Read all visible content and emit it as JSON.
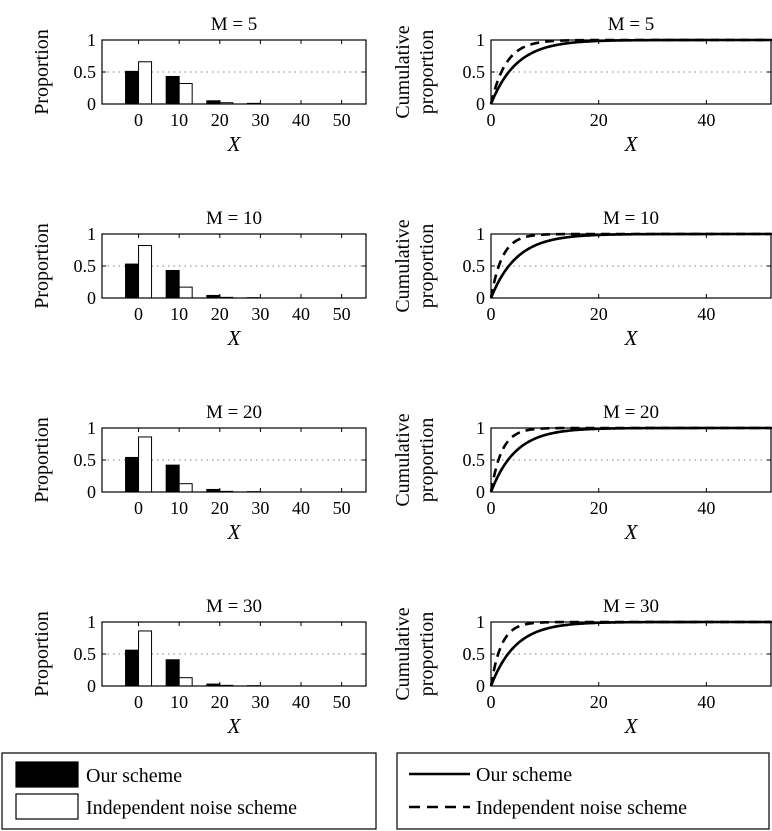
{
  "chart_data": [
    {
      "type": "bar",
      "title": "M = 5",
      "xlabel": "X",
      "ylabel": "Proportion",
      "xlim": [
        -9,
        56
      ],
      "ylim": [
        0,
        1
      ],
      "xticks": [
        0,
        10,
        20,
        30,
        40,
        50
      ],
      "yticks": [
        0,
        0.5,
        1
      ],
      "gridlines": [
        0.5
      ],
      "categories": [
        0,
        10,
        20,
        30,
        40,
        50
      ],
      "series": [
        {
          "name": "Our scheme",
          "values": [
            0.51,
            0.43,
            0.05,
            0.01,
            0.0,
            0.0
          ]
        },
        {
          "name": "Independent noise scheme",
          "values": [
            0.66,
            0.32,
            0.02,
            0.0,
            0.0,
            0.0
          ]
        }
      ]
    },
    {
      "type": "line",
      "title": "M = 5",
      "xlabel": "X",
      "ylabel": "Cumulative proportion",
      "xlim": [
        0,
        52
      ],
      "ylim": [
        0,
        1
      ],
      "xticks": [
        0,
        20,
        40
      ],
      "yticks": [
        0,
        0.5,
        1
      ],
      "gridlines": [
        0.5
      ],
      "series": [
        {
          "name": "Our scheme",
          "rate": 0.21
        },
        {
          "name": "Independent noise scheme",
          "rate": 0.36
        }
      ]
    },
    {
      "type": "bar",
      "title": "M = 10",
      "xlabel": "X",
      "ylabel": "Proportion",
      "xlim": [
        -9,
        56
      ],
      "ylim": [
        0,
        1
      ],
      "xticks": [
        0,
        10,
        20,
        30,
        40,
        50
      ],
      "yticks": [
        0,
        0.5,
        1
      ],
      "gridlines": [
        0.5
      ],
      "categories": [
        0,
        10,
        20,
        30,
        40,
        50
      ],
      "series": [
        {
          "name": "Our scheme",
          "values": [
            0.53,
            0.43,
            0.04,
            0.005,
            0.0,
            0.0
          ]
        },
        {
          "name": "Independent noise scheme",
          "values": [
            0.82,
            0.17,
            0.01,
            0.0,
            0.0,
            0.0
          ]
        }
      ]
    },
    {
      "type": "line",
      "title": "M = 10",
      "xlabel": "X",
      "ylabel": "Cumulative proportion",
      "xlim": [
        0,
        52
      ],
      "ylim": [
        0,
        1
      ],
      "xticks": [
        0,
        20,
        40
      ],
      "yticks": [
        0,
        0.5,
        1
      ],
      "gridlines": [
        0.5
      ],
      "series": [
        {
          "name": "Our scheme",
          "rate": 0.21
        },
        {
          "name": "Independent noise scheme",
          "rate": 0.48
        }
      ]
    },
    {
      "type": "bar",
      "title": "M = 20",
      "xlabel": "X",
      "ylabel": "Proportion",
      "xlim": [
        -9,
        56
      ],
      "ylim": [
        0,
        1
      ],
      "xticks": [
        0,
        10,
        20,
        30,
        40,
        50
      ],
      "yticks": [
        0,
        0.5,
        1
      ],
      "gridlines": [
        0.5
      ],
      "categories": [
        0,
        10,
        20,
        30,
        40,
        50
      ],
      "series": [
        {
          "name": "Our scheme",
          "values": [
            0.54,
            0.42,
            0.04,
            0.005,
            0.0,
            0.0
          ]
        },
        {
          "name": "Independent noise scheme",
          "values": [
            0.86,
            0.13,
            0.01,
            0.0,
            0.0,
            0.0
          ]
        }
      ]
    },
    {
      "type": "line",
      "title": "M = 20",
      "xlabel": "X",
      "ylabel": "Cumulative proportion",
      "xlim": [
        0,
        52
      ],
      "ylim": [
        0,
        1
      ],
      "xticks": [
        0,
        20,
        40
      ],
      "yticks": [
        0,
        0.5,
        1
      ],
      "gridlines": [
        0.5
      ],
      "series": [
        {
          "name": "Our scheme",
          "rate": 0.22
        },
        {
          "name": "Independent noise scheme",
          "rate": 0.5
        }
      ]
    },
    {
      "type": "bar",
      "title": "M = 30",
      "xlabel": "X",
      "ylabel": "Proportion",
      "xlim": [
        -9,
        56
      ],
      "ylim": [
        0,
        1
      ],
      "xticks": [
        0,
        10,
        20,
        30,
        40,
        50
      ],
      "yticks": [
        0,
        0.5,
        1
      ],
      "gridlines": [
        0.5
      ],
      "categories": [
        0,
        10,
        20,
        30,
        40,
        50
      ],
      "series": [
        {
          "name": "Our scheme",
          "values": [
            0.56,
            0.41,
            0.03,
            0.005,
            0.0,
            0.0
          ]
        },
        {
          "name": "Independent noise scheme",
          "values": [
            0.86,
            0.13,
            0.01,
            0.0,
            0.0,
            0.0
          ]
        }
      ]
    },
    {
      "type": "line",
      "title": "M = 30",
      "xlabel": "X",
      "ylabel": "Cumulative proportion",
      "xlim": [
        0,
        52
      ],
      "ylim": [
        0,
        1
      ],
      "xticks": [
        0,
        20,
        40
      ],
      "yticks": [
        0,
        0.5,
        1
      ],
      "gridlines": [
        0.5
      ],
      "series": [
        {
          "name": "Our scheme",
          "rate": 0.22
        },
        {
          "name": "Independent noise scheme",
          "rate": 0.52
        }
      ]
    }
  ],
  "legend": {
    "bar": [
      {
        "label": "Our scheme",
        "swatch": "#000000"
      },
      {
        "label": "Independent noise scheme",
        "swatch": "#ffffff"
      }
    ],
    "line": [
      {
        "label": "Our scheme",
        "style": "solid"
      },
      {
        "label": "Independent noise scheme",
        "style": "dashed"
      }
    ]
  },
  "colors": {
    "our_scheme": "#000000",
    "independent_noise": "#ffffff",
    "axis": "#000000",
    "grid": "#808080"
  }
}
